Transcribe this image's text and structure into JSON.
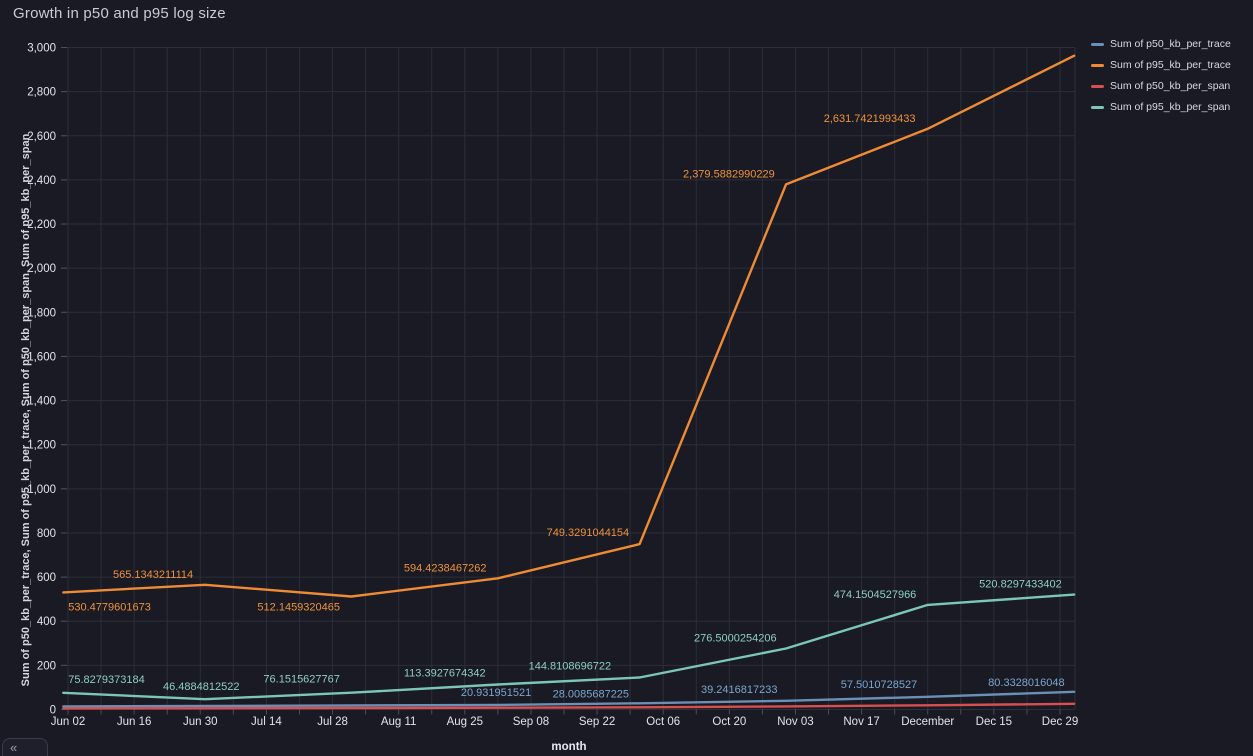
{
  "title": "Growth in p50 and p95 log size",
  "collapse_button_glyph": "«",
  "colors": {
    "background": "#191a23",
    "grid": "#2c2e39",
    "tick": "#4b4e5e",
    "axis_text": "#e2e4ea",
    "axis_title_text": "#e8eaf0",
    "y_axis_label_text": "#d4d6de",
    "title_text": "#c9cad3"
  },
  "legend": {
    "items": [
      {
        "label": "Sum of p50_kb_per_trace",
        "color": "#6b8fb5"
      },
      {
        "label": "Sum of p95_kb_per_trace",
        "color": "#ee8b35"
      },
      {
        "label": "Sum of p50_kb_per_span",
        "color": "#d94f4f"
      },
      {
        "label": "Sum of p95_kb_per_span",
        "color": "#7cc7b4"
      }
    ]
  },
  "x_axis": {
    "label": "month",
    "tick_labels": [
      "Jun 02",
      "Jun 16",
      "Jun 30",
      "Jul 14",
      "Jul 28",
      "Aug 11",
      "Aug 25",
      "Sep 08",
      "Sep 22",
      "Oct 06",
      "Oct 20",
      "Nov 03",
      "Nov 17",
      "December",
      "Dec 15",
      "Dec 29"
    ]
  },
  "y_axis": {
    "label": "Sum of p50_kb_per_trace, Sum of p95_kb_per_trace, Sum of p50_kb_per_span, Sum of p95_kb_per_span",
    "tick_labels": [
      "0",
      "200",
      "400",
      "600",
      "800",
      "1,000",
      "1,200",
      "1,400",
      "1,600",
      "1,800",
      "2,000",
      "2,200",
      "2,400",
      "2,600",
      "2,800",
      "3,000"
    ]
  },
  "chart_data": {
    "type": "line",
    "title": "Growth in p50 and p95 log size",
    "xlabel": "month",
    "ylabel": "Sum of p50_kb_per_trace, Sum of p95_kb_per_trace, Sum of p50_kb_per_span, Sum of p95_kb_per_span",
    "ylim": [
      0,
      3000
    ],
    "grid": "on",
    "legend_position": "top-right-outside",
    "x": [
      "Jun 01",
      "Jul 01",
      "Aug 01",
      "Sep 01",
      "Oct 01",
      "Nov 01",
      "Dec 01",
      "Jan 01"
    ],
    "x_tick_labels": [
      "Jun 02",
      "Jun 16",
      "Jun 30",
      "Jul 14",
      "Jul 28",
      "Aug 11",
      "Aug 25",
      "Sep 08",
      "Sep 22",
      "Oct 06",
      "Oct 20",
      "Nov 03",
      "Nov 17",
      "December",
      "Dec 15",
      "Dec 29"
    ],
    "series": [
      {
        "name": "Sum of p50_kb_per_trace",
        "color": "#6b8fb5",
        "label_color": "#7ca6cf",
        "values": [
          14,
          16,
          18,
          20.931951521,
          28.0085687225,
          39.2416817233,
          57.5010728527,
          80.3328016048
        ],
        "point_labels": [
          null,
          null,
          null,
          "20.931951521",
          "28.0085687225",
          "39.2416817233",
          "57.5010728527",
          "80.3328016048"
        ],
        "label_offsets": [
          null,
          null,
          null,
          [
            -37,
            -9
          ],
          [
            -87,
            -6
          ],
          [
            -85,
            -8
          ],
          [
            -87,
            -9
          ],
          [
            -86,
            -6
          ]
        ]
      },
      {
        "name": "Sum of p95_kb_per_trace",
        "color": "#ee8b35",
        "label_color": "#f0923b",
        "values": [
          530.4779601673,
          565.1343211114,
          512.1459320465,
          594.4238467262,
          749.3291044154,
          2379.5882990229,
          2631.7421993433,
          2963
        ],
        "point_labels": [
          "530.4779601673",
          "565.1343211114",
          "512.1459320465",
          "594.4238467262",
          "749.3291044154",
          "2,379.5882990229",
          "2,631.7421993433",
          null
        ],
        "label_offsets": [
          [
            5,
            18
          ],
          [
            -92,
            -7
          ],
          [
            -94,
            14
          ],
          [
            -94,
            -7
          ],
          [
            -93,
            -8
          ],
          [
            -103,
            -7
          ],
          [
            -104,
            -7
          ],
          null
        ]
      },
      {
        "name": "Sum of p50_kb_per_span",
        "color": "#d94f4f",
        "label_color": "#d94f4f",
        "values": [
          5,
          5.5,
          6.5,
          8,
          10,
          14,
          19,
          26
        ],
        "point_labels": [
          null,
          null,
          null,
          null,
          null,
          null,
          null,
          null
        ],
        "label_offsets": [
          null,
          null,
          null,
          null,
          null,
          null,
          null,
          null
        ]
      },
      {
        "name": "Sum of p95_kb_per_span",
        "color": "#7cc7b4",
        "label_color": "#8ed0bf",
        "values": [
          75.8279373184,
          46.4884812522,
          76.1515627767,
          113.3927674342,
          144.8108696722,
          276.5000254206,
          474.1504527966,
          520.8297433402
        ],
        "point_labels": [
          "75.8279373184",
          "46.4884812522",
          "76.1515627767",
          "113.3927674342",
          "144.8108696722",
          "276.5000254206",
          "474.1504527966",
          "520.8297433402"
        ],
        "label_offsets": [
          [
            5,
            -10
          ],
          [
            -42,
            -9
          ],
          [
            -88,
            -10
          ],
          [
            -94,
            -8
          ],
          [
            -111,
            -8
          ],
          [
            -92,
            -7
          ],
          [
            -94,
            -7
          ],
          [
            -95,
            -7
          ]
        ]
      }
    ]
  }
}
